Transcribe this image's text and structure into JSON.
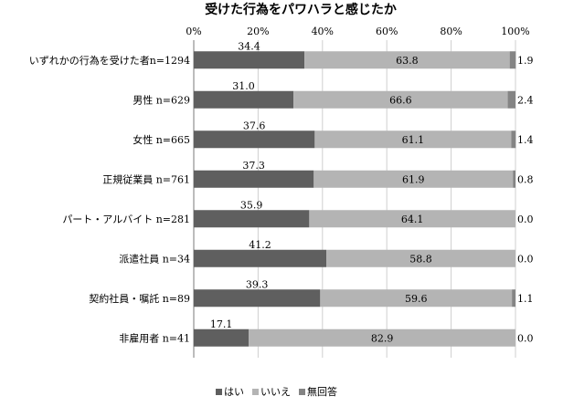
{
  "chart_data": {
    "type": "bar",
    "orientation": "horizontal",
    "stacked": true,
    "title": "受けた行為をパワハラと感じたか",
    "xlim": [
      0,
      100
    ],
    "xticks": [
      "0%",
      "20%",
      "40%",
      "60%",
      "80%",
      "100%"
    ],
    "grid": true,
    "legend_position": "bottom",
    "categories": [
      "いずれかの行為を受けた者n=1294",
      "男性 n=629",
      "女性 n=665",
      "正規従業員 n=761",
      "パート・アルバイト n=281",
      "派遣社員 n=34",
      "契約社員・嘱託 n=89",
      "非雇用者 n=41"
    ],
    "series": [
      {
        "name": "はい",
        "color": "#5f5f5f",
        "values": [
          34.4,
          31.0,
          37.6,
          37.3,
          35.9,
          41.2,
          39.3,
          17.1
        ],
        "labels": [
          "34.4",
          "31.0",
          "37.6",
          "37.3",
          "35.9",
          "41.2",
          "39.3",
          "17.1"
        ]
      },
      {
        "name": "いいえ",
        "color": "#b4b4b4",
        "values": [
          63.8,
          66.6,
          61.1,
          61.9,
          64.1,
          58.8,
          59.6,
          82.9
        ],
        "labels": [
          "63.8",
          "66.6",
          "61.1",
          "61.9",
          "64.1",
          "58.8",
          "59.6",
          "82.9"
        ]
      },
      {
        "name": "無回答",
        "color": "#848484",
        "values": [
          1.9,
          2.4,
          1.4,
          0.8,
          0.0,
          0.0,
          1.1,
          0.0
        ],
        "labels": [
          "1.9",
          "2.4",
          "1.4",
          "0.8",
          "0.0",
          "0.0",
          "1.1",
          "0.0"
        ]
      }
    ]
  }
}
